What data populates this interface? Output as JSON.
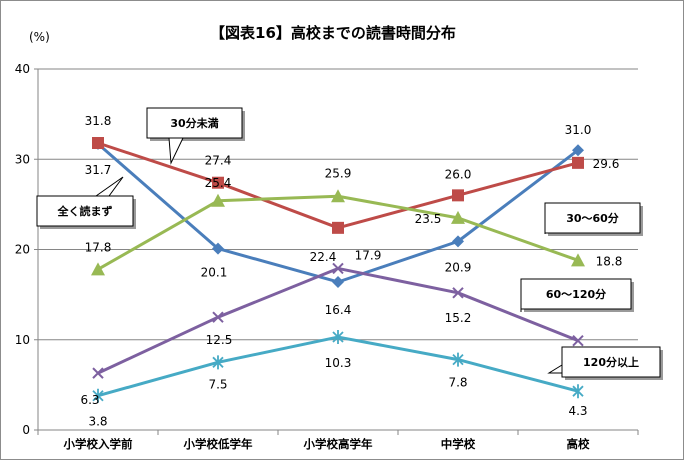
{
  "chart_data": {
    "type": "line",
    "title": "【図表16】高校までの読書時間分布",
    "ylabel": "(%)",
    "xlabel": "",
    "ylim": [
      0,
      40
    ],
    "yticks": [
      0,
      10,
      20,
      30,
      40
    ],
    "categories": [
      "小学校入学前",
      "小学校低学年",
      "小学校高学年",
      "中学校",
      "高校"
    ],
    "grid": "horizontal",
    "series": [
      {
        "name": "全く読まず",
        "color": "#4a7ebb",
        "marker": "diamond",
        "values": [
          31.7,
          20.1,
          16.4,
          20.9,
          31.0
        ]
      },
      {
        "name": "30分未満",
        "color": "#be4b48",
        "marker": "square",
        "values": [
          31.8,
          27.4,
          22.4,
          26.0,
          29.6
        ]
      },
      {
        "name": "30〜60分",
        "color": "#98b954",
        "marker": "triangle",
        "values": [
          17.8,
          25.4,
          25.9,
          23.5,
          18.8
        ]
      },
      {
        "name": "60〜120分",
        "color": "#7d60a0",
        "marker": "x",
        "values": [
          6.3,
          12.5,
          17.9,
          15.2,
          9.9
        ]
      },
      {
        "name": "120分以上",
        "color": "#46aac5",
        "marker": "star",
        "values": [
          3.8,
          7.5,
          10.3,
          7.8,
          4.3
        ]
      }
    ],
    "data_labels": [
      [
        "31.7",
        "20.1",
        "16.4",
        "20.9",
        "31.0"
      ],
      [
        "31.8",
        "27.4",
        "22.4",
        "26.0",
        "29.6"
      ],
      [
        "17.8",
        "25.4",
        "25.9",
        "23.5",
        "18.8"
      ],
      [
        "6.3",
        "12.5",
        "17.9",
        "15.2",
        ""
      ],
      [
        "3.8",
        "7.5",
        "10.3",
        "7.8",
        "4.3"
      ]
    ]
  }
}
